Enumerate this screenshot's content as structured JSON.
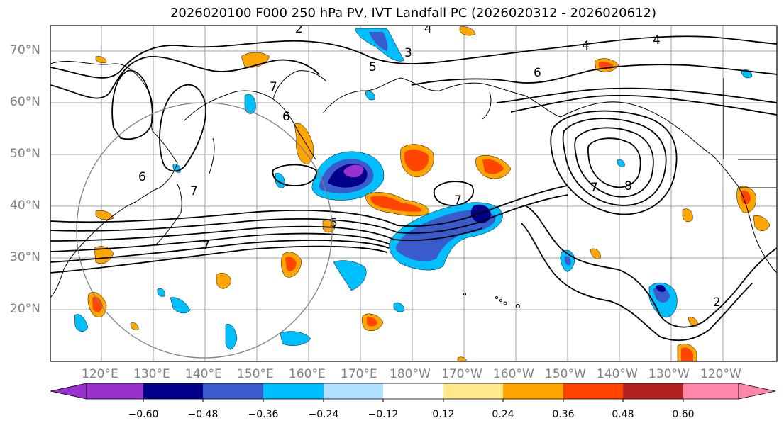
{
  "title": "2026020100 F000 250 hPa PV, IVT Landfall PC (2026020312 - 2026020612)",
  "map": {
    "lat_labels": [
      "70°N",
      "60°N",
      "50°N",
      "40°N",
      "30°N",
      "20°N"
    ],
    "lon_labels": [
      "120°E",
      "130°E",
      "140°E",
      "150°E",
      "160°E",
      "170°E",
      "180°W",
      "170°W",
      "160°W",
      "150°W",
      "140°W",
      "130°W",
      "120°W"
    ],
    "contour_labels": [
      "2",
      "4",
      "5",
      "6",
      "7",
      "7",
      "6",
      "7",
      "7",
      "7",
      "8",
      "4",
      "2",
      "6",
      "4",
      "5",
      "3"
    ],
    "colors": {
      "neg_extreme": "#9932cc",
      "neg_strong": "#00008b",
      "neg_mid": "#3a5bcc",
      "neg_light": "#00bfff",
      "neg_faint": "#b0e0ff",
      "pos_faint": "#ffe98a",
      "pos_light": "#ffa500",
      "pos_mid": "#ff4500",
      "pos_strong": "#b22222",
      "pos_extreme": "#ff88aa"
    }
  },
  "colorbar": {
    "ticks": [
      "−0.60",
      "−0.48",
      "−0.36",
      "−0.24",
      "−0.12",
      "0.12",
      "0.24",
      "0.36",
      "0.48",
      "0.60"
    ],
    "colors": [
      "#9932cc",
      "#00008b",
      "#3a5bcc",
      "#00bfff",
      "#b0e0ff",
      "#ffffff",
      "#ffe98a",
      "#ffa500",
      "#ff4500",
      "#b22222",
      "#ff88aa"
    ]
  }
}
